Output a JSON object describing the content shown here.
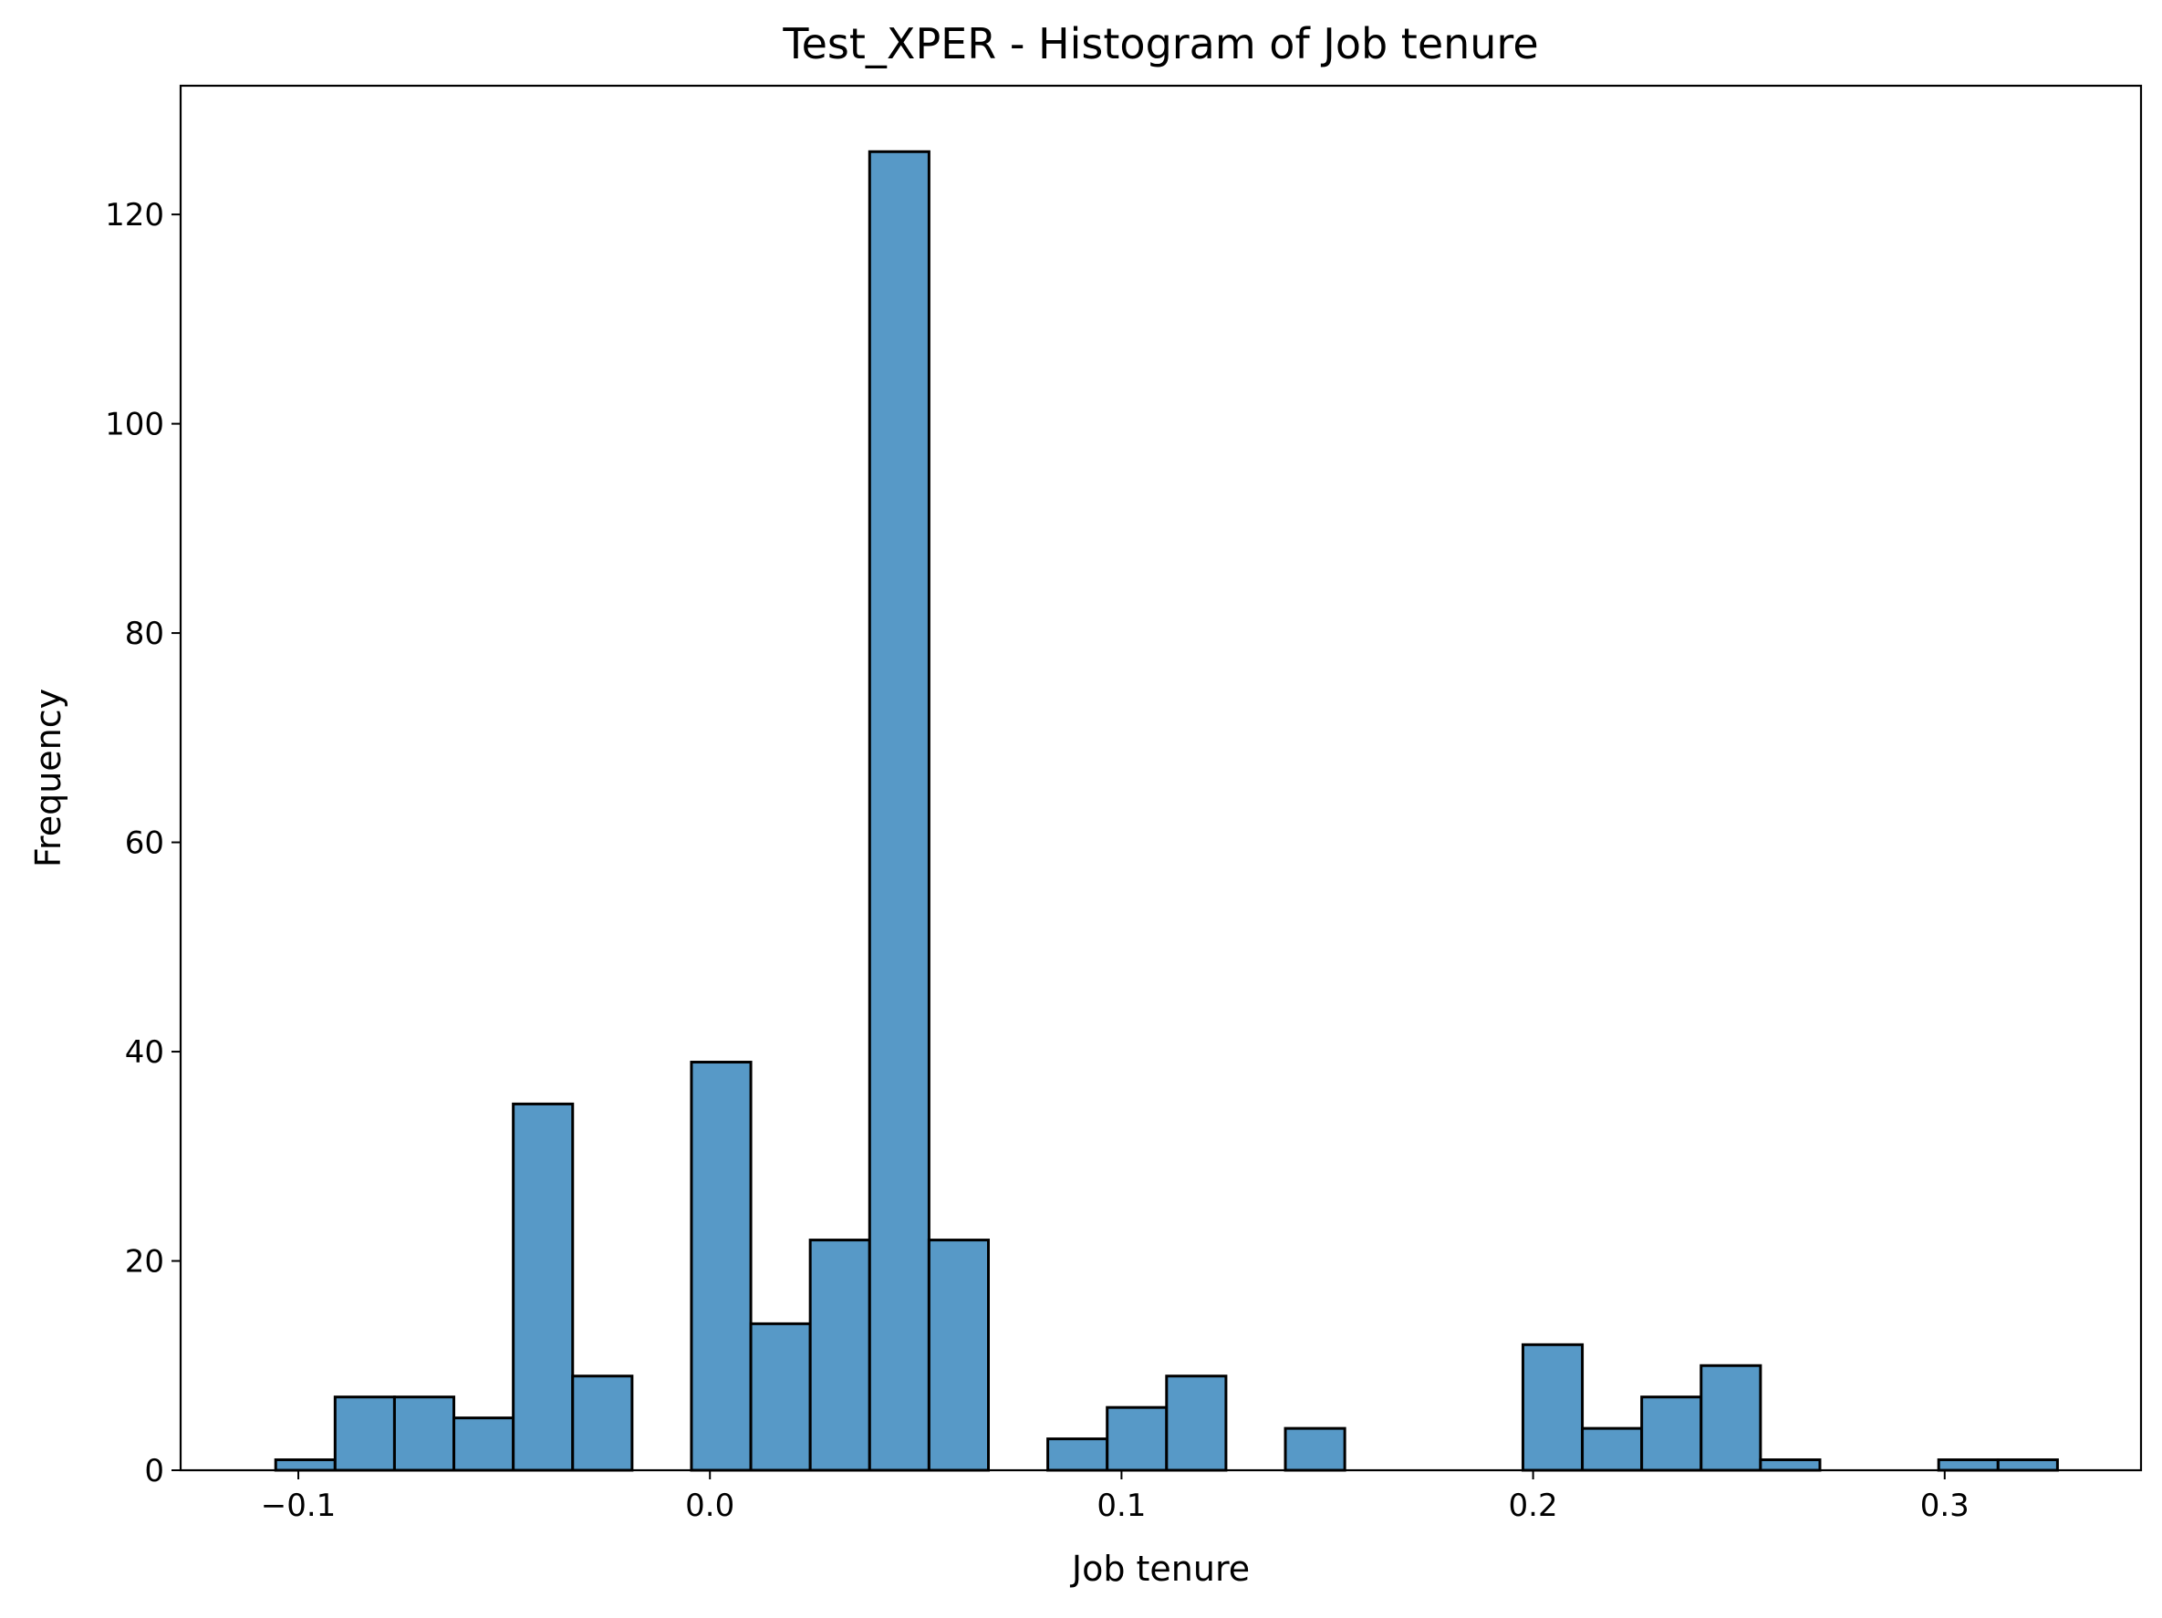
{
  "chart_data": {
    "type": "bar",
    "subtype": "histogram",
    "title": "Test_XPER - Histogram of Job tenure",
    "xlabel": "Job tenure",
    "ylabel": "Frequency",
    "xlim": [
      -0.1286,
      0.3477
    ],
    "ylim": [
      0,
      132.3
    ],
    "xticks": [
      -0.1,
      0.0,
      0.1,
      0.2,
      0.3
    ],
    "xtick_labels": [
      "−0.1",
      "0.0",
      "0.1",
      "0.2",
      "0.3"
    ],
    "yticks": [
      0,
      20,
      40,
      60,
      80,
      100,
      120
    ],
    "ytick_labels": [
      "0",
      "20",
      "40",
      "60",
      "80",
      "100",
      "120"
    ],
    "bin_start": -0.1055,
    "bin_width": 0.01443,
    "counts": [
      1,
      7,
      7,
      5,
      35,
      9,
      0,
      39,
      14,
      22,
      126,
      22,
      0,
      3,
      6,
      9,
      0,
      4,
      0,
      0,
      0,
      12,
      4,
      7,
      10,
      1,
      0,
      0,
      1,
      1
    ],
    "grid": false,
    "legend": "none",
    "colors": {
      "bar_fill": "#5799c7",
      "bar_edge": "#000000",
      "axes": "#000000"
    }
  }
}
